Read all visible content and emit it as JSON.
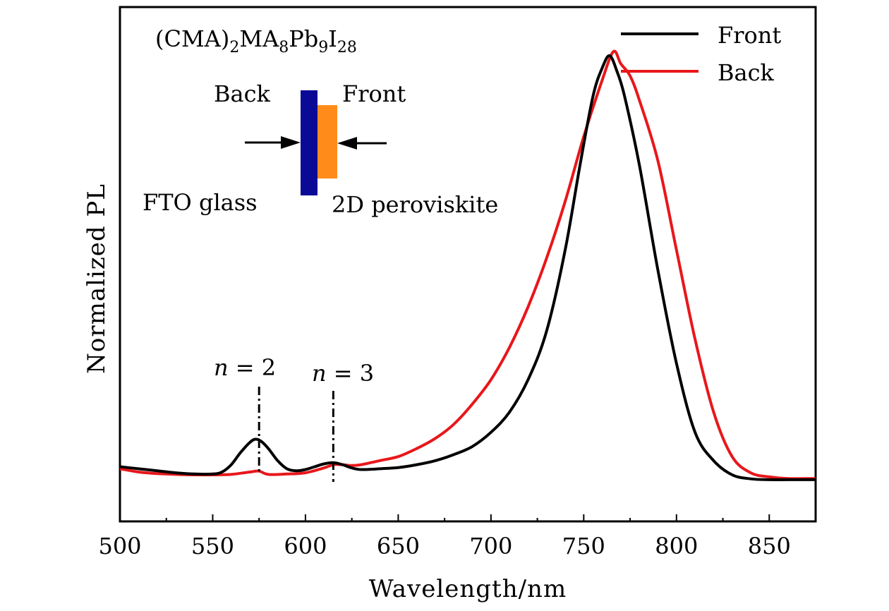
{
  "chart_data": {
    "type": "line",
    "xlabel": "Wavelength/nm",
    "ylabel": "Normalized PL",
    "xlim": [
      500,
      875
    ],
    "ylim": [
      -0.12,
      1.15
    ],
    "x_ticks": [
      500,
      550,
      600,
      650,
      700,
      750,
      800,
      850
    ],
    "y_ticks_labeled": false,
    "grid": false,
    "legend_position": "top-right",
    "series": [
      {
        "name": "Front",
        "color": "#000000",
        "points": [
          [
            500,
            0.015
          ],
          [
            510,
            0.01
          ],
          [
            520,
            0.005
          ],
          [
            530,
            0.0
          ],
          [
            540,
            -0.003
          ],
          [
            550,
            -0.003
          ],
          [
            555,
            0.002
          ],
          [
            560,
            0.02
          ],
          [
            565,
            0.05
          ],
          [
            570,
            0.075
          ],
          [
            573,
            0.083
          ],
          [
            576,
            0.078
          ],
          [
            580,
            0.06
          ],
          [
            585,
            0.03
          ],
          [
            590,
            0.01
          ],
          [
            595,
            0.005
          ],
          [
            600,
            0.008
          ],
          [
            605,
            0.015
          ],
          [
            610,
            0.022
          ],
          [
            615,
            0.025
          ],
          [
            620,
            0.02
          ],
          [
            625,
            0.012
          ],
          [
            630,
            0.008
          ],
          [
            640,
            0.01
          ],
          [
            650,
            0.013
          ],
          [
            660,
            0.02
          ],
          [
            670,
            0.03
          ],
          [
            680,
            0.045
          ],
          [
            690,
            0.065
          ],
          [
            700,
            0.1
          ],
          [
            710,
            0.15
          ],
          [
            720,
            0.23
          ],
          [
            730,
            0.35
          ],
          [
            740,
            0.55
          ],
          [
            748,
            0.76
          ],
          [
            755,
            0.93
          ],
          [
            760,
            1.0
          ],
          [
            764,
            1.03
          ],
          [
            768,
            0.99
          ],
          [
            772,
            0.93
          ],
          [
            780,
            0.76
          ],
          [
            790,
            0.5
          ],
          [
            800,
            0.27
          ],
          [
            810,
            0.1
          ],
          [
            820,
            0.03
          ],
          [
            830,
            -0.005
          ],
          [
            840,
            -0.015
          ],
          [
            850,
            -0.017
          ],
          [
            860,
            -0.017
          ],
          [
            875,
            -0.017
          ]
        ]
      },
      {
        "name": "Back",
        "color": "#e8171b",
        "points": [
          [
            500,
            0.01
          ],
          [
            510,
            0.002
          ],
          [
            520,
            -0.002
          ],
          [
            530,
            -0.004
          ],
          [
            540,
            -0.005
          ],
          [
            550,
            -0.005
          ],
          [
            560,
            -0.004
          ],
          [
            570,
            0.002
          ],
          [
            575,
            0.004
          ],
          [
            580,
            -0.004
          ],
          [
            590,
            -0.003
          ],
          [
            600,
            0.0
          ],
          [
            610,
            0.012
          ],
          [
            615,
            0.02
          ],
          [
            620,
            0.02
          ],
          [
            625,
            0.018
          ],
          [
            630,
            0.02
          ],
          [
            640,
            0.03
          ],
          [
            650,
            0.04
          ],
          [
            660,
            0.06
          ],
          [
            670,
            0.085
          ],
          [
            680,
            0.12
          ],
          [
            690,
            0.17
          ],
          [
            700,
            0.23
          ],
          [
            710,
            0.31
          ],
          [
            720,
            0.41
          ],
          [
            730,
            0.53
          ],
          [
            740,
            0.67
          ],
          [
            750,
            0.83
          ],
          [
            760,
            0.97
          ],
          [
            766,
            1.04
          ],
          [
            770,
            1.01
          ],
          [
            775,
            0.98
          ],
          [
            780,
            0.92
          ],
          [
            790,
            0.77
          ],
          [
            800,
            0.55
          ],
          [
            810,
            0.33
          ],
          [
            820,
            0.15
          ],
          [
            830,
            0.04
          ],
          [
            840,
            0.0
          ],
          [
            850,
            -0.01
          ],
          [
            860,
            -0.014
          ],
          [
            875,
            -0.014
          ]
        ]
      }
    ],
    "annotations": {
      "formula": {
        "prefix": "(CMA)",
        "sub1": "2",
        "mid1": "MA",
        "sub2": "8",
        "mid2": "Pb",
        "sub3": "9",
        "mid3": "I",
        "sub4": "28"
      },
      "inset_back": "Back",
      "inset_front": "Front",
      "inset_fto": "FTO glass",
      "inset_2d": "2D peroviskite",
      "inset_fto_color": "#0a0a96",
      "inset_perov_color": "#ff8c1a",
      "n2_var": "n",
      "n2_rest": " = 2",
      "n2_x": 575,
      "n3_var": "n",
      "n3_rest": " = 3",
      "n3_x": 615
    }
  }
}
